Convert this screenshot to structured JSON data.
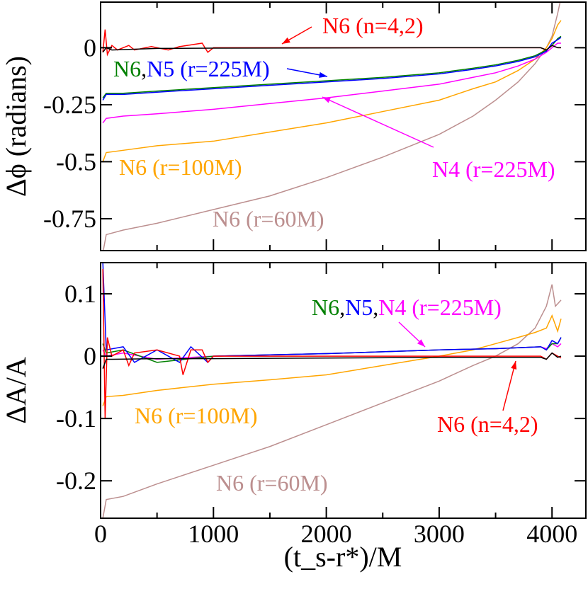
{
  "chart_data": [
    {
      "type": "line",
      "ylabel": "Δϕ (radians)",
      "xlim": [
        0,
        4300
      ],
      "ylim": [
        -0.89,
        0.2
      ],
      "yticks": [
        -0.75,
        -0.5,
        -0.25,
        0
      ],
      "ytick_labels": [
        "-0.75",
        "-0.5",
        "-0.25",
        "0"
      ],
      "xticks": [
        0,
        1000,
        2000,
        3000,
        4000
      ],
      "grid": false,
      "series": [
        {
          "color": "#bc8f8f",
          "x": [
            20,
            50,
            200,
            500,
            1000,
            1500,
            2000,
            2500,
            3000,
            3300,
            3500,
            3700,
            3850,
            3950,
            4000,
            4050,
            4080
          ],
          "y": [
            -0.9,
            -0.82,
            -0.8,
            -0.77,
            -0.71,
            -0.65,
            -0.57,
            -0.48,
            -0.38,
            -0.3,
            -0.23,
            -0.15,
            -0.07,
            0.0,
            0.05,
            0.15,
            0.22
          ]
        },
        {
          "color": "#ffa500",
          "x": [
            20,
            50,
            200,
            500,
            1000,
            1500,
            2000,
            2500,
            3000,
            3300,
            3500,
            3700,
            3850,
            3950,
            4000,
            4050,
            4080
          ],
          "y": [
            -0.5,
            -0.46,
            -0.45,
            -0.43,
            -0.41,
            -0.37,
            -0.33,
            -0.28,
            -0.23,
            -0.18,
            -0.15,
            -0.1,
            -0.05,
            0.0,
            0.04,
            0.1,
            0.12
          ]
        },
        {
          "color": "#ff00ff",
          "x": [
            20,
            50,
            200,
            500,
            1000,
            1500,
            2000,
            2500,
            3000,
            3300,
            3500,
            3700,
            3850,
            3950,
            4000,
            4050,
            4080
          ],
          "y": [
            -0.33,
            -0.31,
            -0.3,
            -0.29,
            -0.27,
            -0.245,
            -0.22,
            -0.19,
            -0.16,
            -0.13,
            -0.11,
            -0.08,
            -0.05,
            -0.02,
            0.0,
            0.02,
            0.02
          ]
        },
        {
          "color": "#008000",
          "x": [
            20,
            50,
            200,
            500,
            1000,
            1500,
            2000,
            2500,
            3000,
            3300,
            3500,
            3700,
            3850,
            3950,
            4000,
            4050,
            4080
          ],
          "y": [
            -0.22,
            -0.2,
            -0.2,
            -0.19,
            -0.175,
            -0.16,
            -0.145,
            -0.13,
            -0.11,
            -0.09,
            -0.075,
            -0.055,
            -0.035,
            -0.01,
            0.01,
            0.04,
            0.05
          ]
        },
        {
          "color": "#0000ff",
          "x": [
            20,
            50,
            200,
            500,
            1000,
            1500,
            2000,
            2500,
            3000,
            3300,
            3500,
            3700,
            3850,
            3950,
            4000,
            4050,
            4080
          ],
          "y": [
            -0.23,
            -0.205,
            -0.205,
            -0.195,
            -0.18,
            -0.165,
            -0.15,
            -0.135,
            -0.115,
            -0.095,
            -0.08,
            -0.06,
            -0.04,
            -0.015,
            0.02,
            0.035,
            0.045
          ]
        },
        {
          "color": "#ff0000",
          "x": [
            20,
            40,
            60,
            100,
            150,
            250,
            300,
            450,
            600,
            700,
            900,
            950,
            1000,
            1500,
            2000,
            3000,
            3900,
            3950,
            4000,
            4050,
            4080
          ],
          "y": [
            -0.02,
            0.08,
            -0.03,
            0.01,
            -0.01,
            0.01,
            -0.01,
            0.005,
            -0.01,
            0.005,
            0.02,
            -0.02,
            0.0,
            0.0,
            0.0,
            0.0,
            0.0,
            -0.01,
            0.01,
            0.0,
            0.0
          ]
        },
        {
          "color": "#000000",
          "x": [
            20,
            50,
            100,
            500,
            1000,
            2000,
            3000,
            3900,
            3950,
            4000,
            4050,
            4080
          ],
          "y": [
            -0.02,
            0.0,
            -0.01,
            -0.003,
            -0.002,
            -0.001,
            0.0,
            0.0,
            -0.01,
            0.01,
            0.0,
            0.0
          ]
        }
      ],
      "annotations": [
        {
          "parts": [
            {
              "text": "N6 (n=4,2)",
              "color": "#ff0000"
            }
          ]
        },
        {
          "parts": [
            {
              "text": "N6",
              "color": "#008000"
            },
            {
              "text": ",",
              "color": "#000000"
            },
            {
              "text": "N5 (r=225M)",
              "color": "#0000ff"
            }
          ]
        },
        {
          "parts": [
            {
              "text": "N4 (r=225M)",
              "color": "#ff00ff"
            }
          ]
        },
        {
          "parts": [
            {
              "text": "N6 (r=100M)",
              "color": "#ffa500"
            }
          ]
        },
        {
          "parts": [
            {
              "text": "N6 (r=60M)",
              "color": "#bc8f8f"
            }
          ]
        }
      ]
    },
    {
      "type": "line",
      "ylabel": "ΔA/A",
      "xlabel": "(t_s-r*)/M",
      "xlim": [
        0,
        4300
      ],
      "ylim": [
        -0.26,
        0.15
      ],
      "yticks": [
        -0.2,
        -0.1,
        0,
        0.1
      ],
      "ytick_labels": [
        "-0.2",
        "-0.1",
        "0",
        "0.1"
      ],
      "xticks": [
        0,
        1000,
        2000,
        3000,
        4000
      ],
      "xtick_labels": [
        "0",
        "1000",
        "2000",
        "3000",
        "4000"
      ],
      "grid": false,
      "series": [
        {
          "color": "#bc8f8f",
          "x": [
            20,
            50,
            200,
            500,
            1000,
            1500,
            2000,
            2500,
            3000,
            3300,
            3500,
            3700,
            3850,
            3950,
            4000,
            4030,
            4080
          ],
          "y": [
            -0.26,
            -0.23,
            -0.225,
            -0.205,
            -0.175,
            -0.145,
            -0.11,
            -0.075,
            -0.04,
            -0.015,
            0.0,
            0.02,
            0.045,
            0.08,
            0.115,
            0.08,
            0.09
          ]
        },
        {
          "color": "#ffa500",
          "x": [
            20,
            50,
            200,
            500,
            1000,
            1500,
            2000,
            2500,
            3000,
            3300,
            3500,
            3700,
            3850,
            3950,
            4000,
            4050,
            4080
          ],
          "y": [
            -0.08,
            -0.065,
            -0.063,
            -0.055,
            -0.045,
            -0.038,
            -0.03,
            -0.015,
            0.0,
            0.01,
            0.02,
            0.03,
            0.038,
            0.045,
            0.065,
            0.04,
            0.06
          ]
        },
        {
          "color": "#ff00ff",
          "x": [
            20,
            50,
            200,
            500,
            1000,
            1500,
            2000,
            2500,
            3000,
            3500,
            3900,
            3950,
            4000,
            4050,
            4080
          ],
          "y": [
            0.01,
            0.0,
            0.005,
            -0.005,
            0.0,
            0.002,
            0.004,
            0.007,
            0.01,
            0.012,
            0.015,
            0.012,
            0.02,
            0.015,
            0.02
          ]
        },
        {
          "color": "#008000",
          "x": [
            20,
            50,
            200,
            500,
            1000,
            1500,
            2000,
            2500,
            3000,
            3500,
            3900,
            3950,
            4000,
            4050,
            4080
          ],
          "y": [
            0.02,
            0.005,
            0.01,
            -0.01,
            0.0,
            0.002,
            0.004,
            0.007,
            0.01,
            0.012,
            0.015,
            0.01,
            0.02,
            0.02,
            0.03
          ]
        },
        {
          "color": "#0000ff",
          "x": [
            20,
            50,
            200,
            300,
            500,
            700,
            800,
            950,
            1000,
            1500,
            2000,
            2500,
            3000,
            3500,
            3900,
            3950,
            4000,
            4050,
            4080
          ],
          "y": [
            0.15,
            0.01,
            0.015,
            -0.01,
            0.01,
            -0.01,
            0.015,
            -0.01,
            0.0,
            0.002,
            0.004,
            0.007,
            0.01,
            0.012,
            0.015,
            0.01,
            0.025,
            0.02,
            0.03
          ]
        },
        {
          "color": "#ff0000",
          "x": [
            20,
            40,
            60,
            100,
            200,
            250,
            300,
            500,
            700,
            730,
            800,
            900,
            950,
            1000,
            2000,
            3000,
            3900,
            3950,
            4000,
            4050,
            4080
          ],
          "y": [
            0.14,
            -0.1,
            0.03,
            0.0,
            0.01,
            -0.015,
            0.005,
            0.01,
            0.0,
            -0.03,
            0.01,
            0.01,
            -0.01,
            0.0,
            0.0,
            0.0,
            0.0,
            -0.005,
            0.005,
            0.0,
            -0.003
          ]
        },
        {
          "color": "#000000",
          "x": [
            20,
            50,
            100,
            500,
            1000,
            2000,
            3000,
            3900,
            3950,
            4000,
            4050,
            4080
          ],
          "y": [
            -0.02,
            -0.005,
            -0.005,
            -0.004,
            -0.004,
            -0.003,
            -0.002,
            -0.002,
            -0.005,
            0.005,
            -0.002,
            0.0
          ]
        }
      ],
      "annotations": [
        {
          "parts": [
            {
              "text": "N6",
              "color": "#008000"
            },
            {
              "text": ",",
              "color": "#000000"
            },
            {
              "text": "N5",
              "color": "#0000ff"
            },
            {
              "text": ",",
              "color": "#000000"
            },
            {
              "text": "N4 (r=225M)",
              "color": "#ff00ff"
            }
          ]
        },
        {
          "parts": [
            {
              "text": "N6 (r=100M)",
              "color": "#ffa500"
            }
          ]
        },
        {
          "parts": [
            {
              "text": "N6 (n=4,2)",
              "color": "#ff0000"
            }
          ]
        },
        {
          "parts": [
            {
              "text": "N6 (r=60M)",
              "color": "#bc8f8f"
            }
          ]
        }
      ]
    }
  ]
}
